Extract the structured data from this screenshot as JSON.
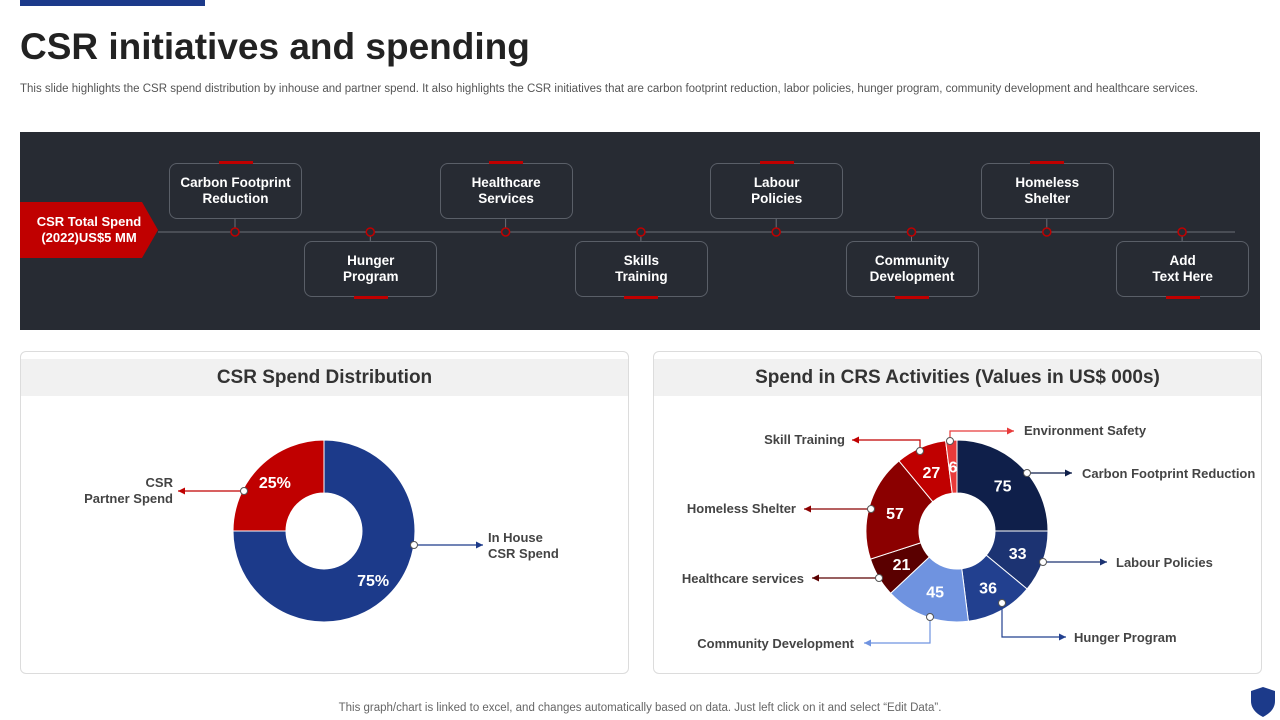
{
  "page": {
    "title": "CSR initiatives and spending",
    "subtitle": "This slide highlights the CSR spend distribution by inhouse and partner spend. It also highlights the CSR initiatives that are carbon footprint reduction, labor policies, hunger program, community development and healthcare services.",
    "footer": "This graph/chart is linked to excel,  and changes automatically based on data. Just left click on it and select “Edit Data”."
  },
  "timeline": {
    "total_spend": "CSR Total Spend\n(2022)US$5  MM",
    "items": [
      {
        "label": "Carbon Footprint\nReduction",
        "pos": "up"
      },
      {
        "label": "Hunger\nProgram",
        "pos": "down"
      },
      {
        "label": "Healthcare\nServices",
        "pos": "up"
      },
      {
        "label": "Skills\nTraining",
        "pos": "down"
      },
      {
        "label": "Labour\nPolicies",
        "pos": "up"
      },
      {
        "label": "Community\nDevelopment",
        "pos": "down"
      },
      {
        "label": "Homeless\nShelter",
        "pos": "up"
      },
      {
        "label": "Add\nText Here",
        "pos": "down"
      }
    ]
  },
  "colors": {
    "accent_red": "#c00000",
    "navy": "#1c3a8a",
    "dark_panel": "#272b33"
  },
  "chart_data": [
    {
      "type": "pie",
      "title": "CSR Spend Distribution",
      "unit": "%",
      "slices": [
        {
          "label": "In House\nCSR Spend",
          "value": 75,
          "display": "75%",
          "color": "#1c3a8a"
        },
        {
          "label": "CSR\nPartner Spend",
          "value": 25,
          "display": "25%",
          "color": "#c00000"
        }
      ]
    },
    {
      "type": "pie",
      "title": "Spend in CRS Activities (Values in US$ 000s)",
      "slices": [
        {
          "label": "Carbon Footprint Reduction",
          "value": 75,
          "display": "75",
          "color": "#0f1f4a"
        },
        {
          "label": "Labour Policies",
          "value": 33,
          "display": "33",
          "color": "#1c3372"
        },
        {
          "label": "Hunger Program",
          "value": 36,
          "display": "36",
          "color": "#22408f"
        },
        {
          "label": "Community Development",
          "value": 45,
          "display": "45",
          "color": "#6f93e0"
        },
        {
          "label": "Healthcare services",
          "value": 21,
          "display": "21",
          "color": "#5a0000"
        },
        {
          "label": "Homeless Shelter",
          "value": 57,
          "display": "57",
          "color": "#8b0000"
        },
        {
          "label": "Skill Training",
          "value": 27,
          "display": "27",
          "color": "#c00000"
        },
        {
          "label": "Environment Safety",
          "value": 6,
          "display": "6",
          "color": "#e83a3a"
        }
      ]
    }
  ]
}
